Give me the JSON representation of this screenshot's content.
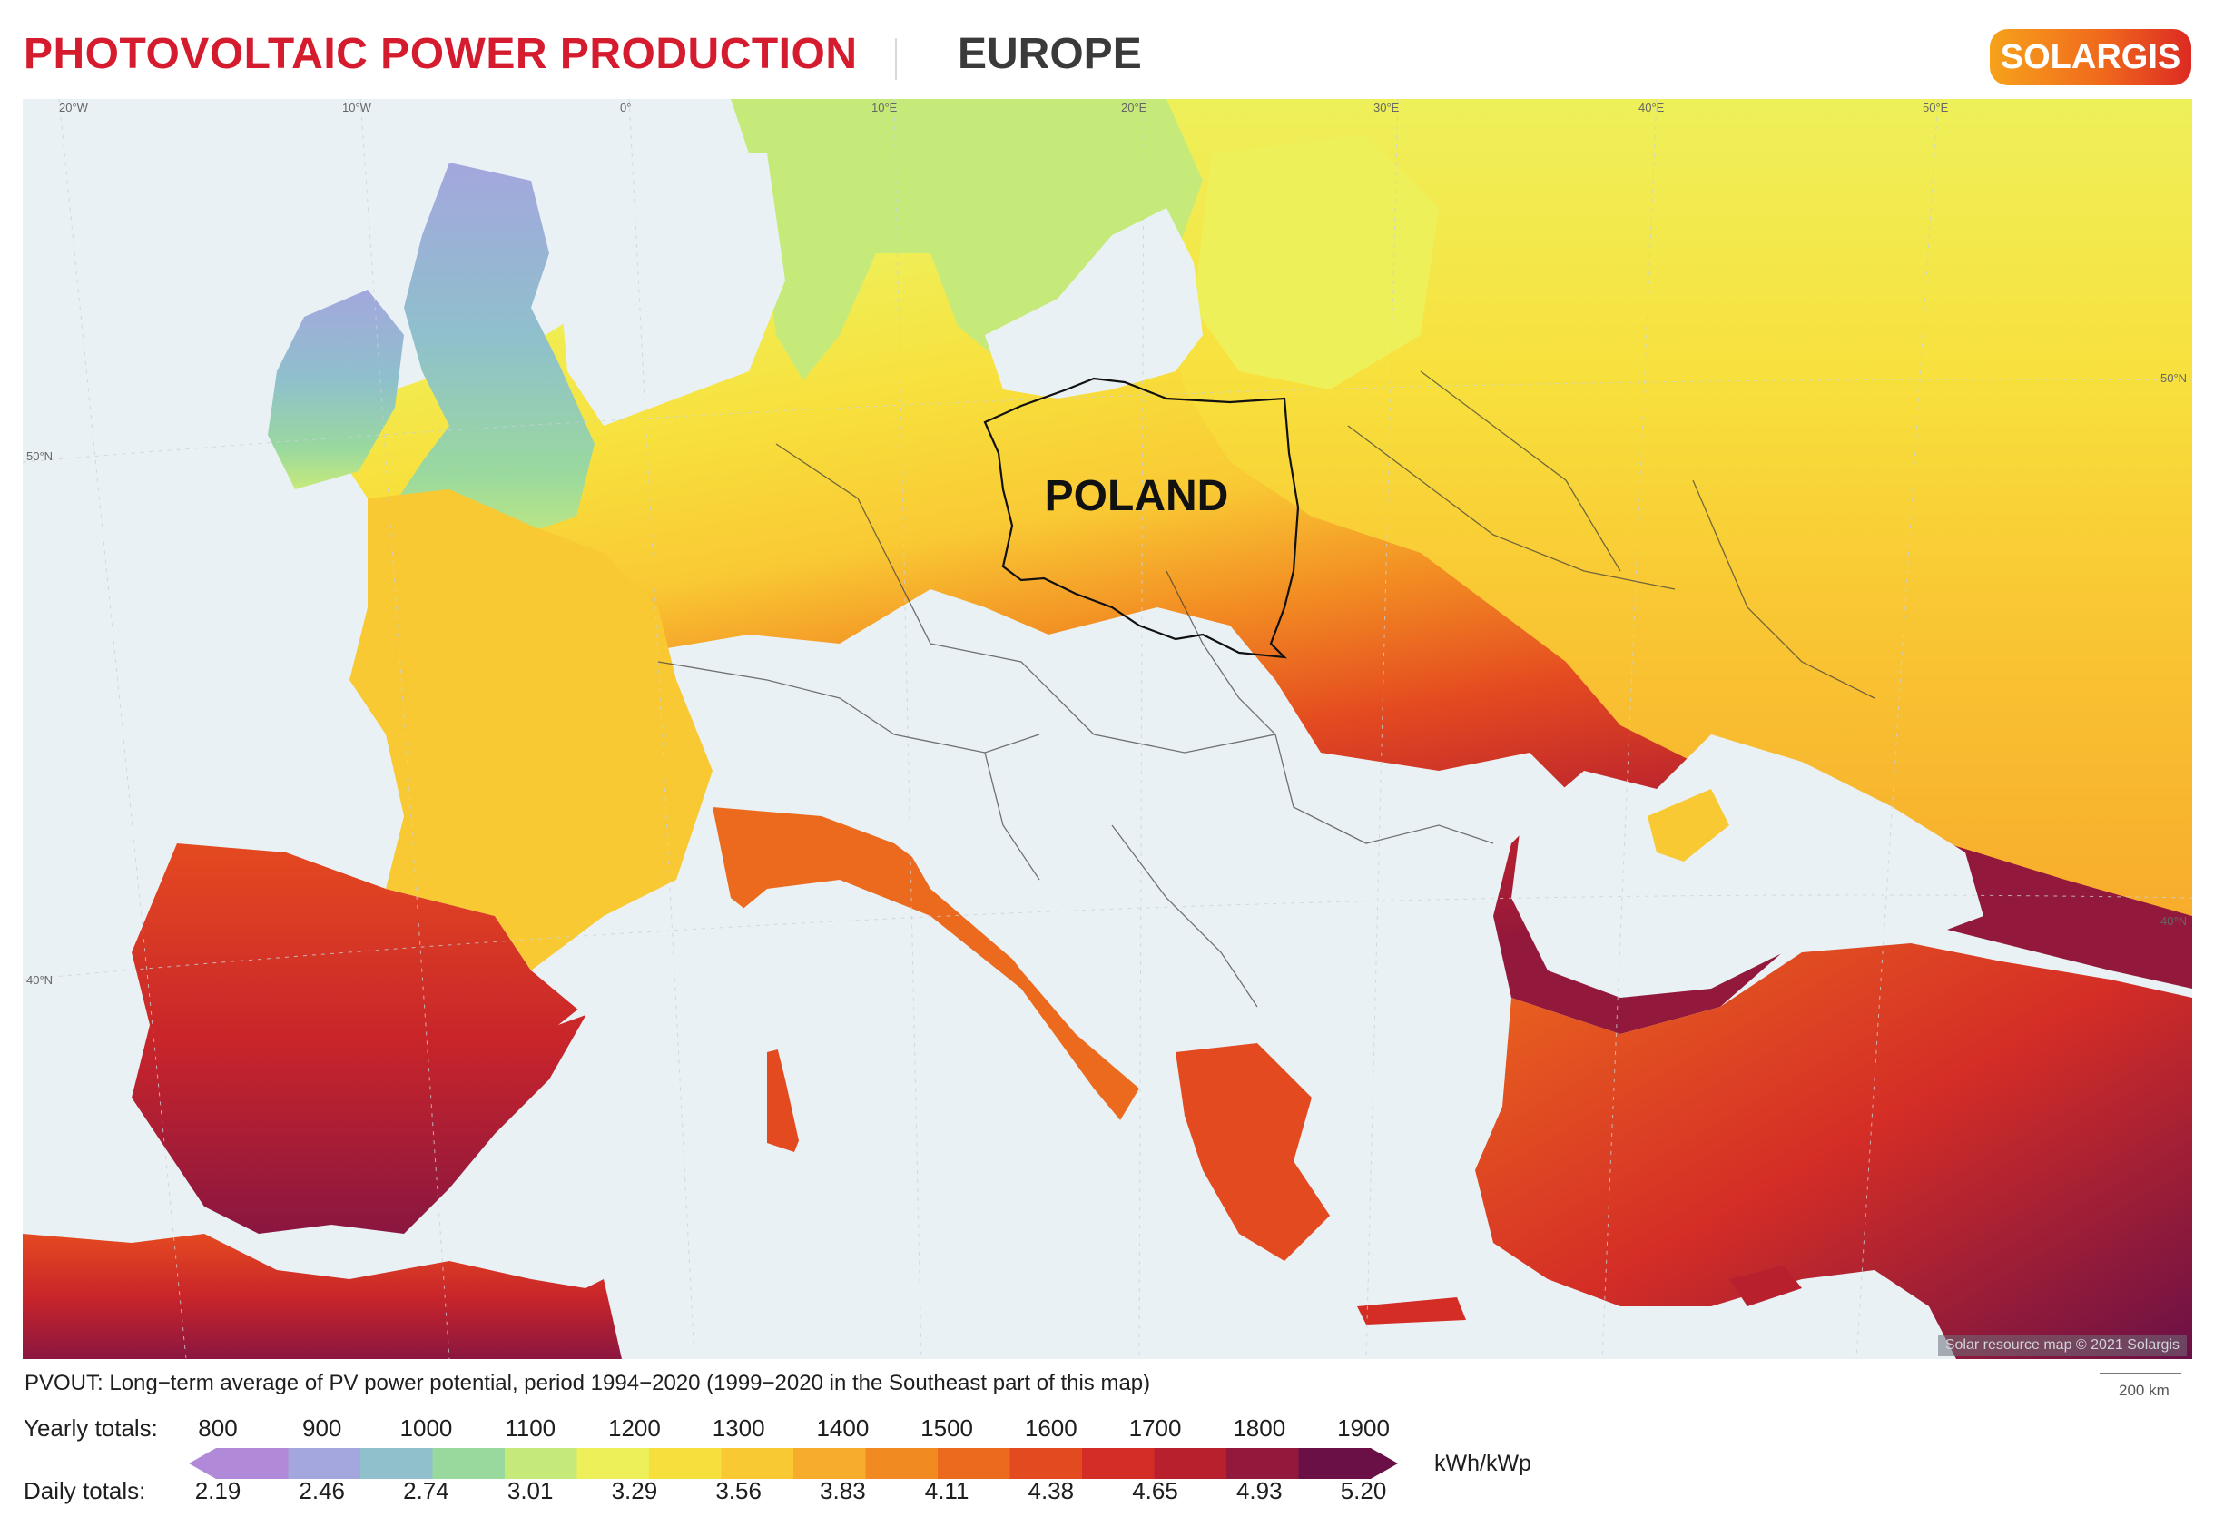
{
  "header": {
    "title": "PHOTOVOLTAIC POWER PRODUCTION",
    "region": "EUROPE",
    "logo": "SOLARGIS"
  },
  "map": {
    "country_label": "POLAND",
    "copyright": "Solar resource map © 2021 Solargis",
    "longitude_labels": [
      "20°W",
      "10°W",
      "0°",
      "10°E",
      "20°E",
      "30°E",
      "40°E",
      "50°E"
    ],
    "latitude_labels": [
      "50°N",
      "40°N"
    ],
    "latitude_labels_right": [
      "50°N",
      "40°N"
    ]
  },
  "caption": "PVOUT: Long−term average of PV power potential, period 1994−2020 (1999−2020 in the Southeast part of this map)",
  "scale": "200 km",
  "legend": {
    "yearly_label": "Yearly totals:",
    "daily_label": "Daily totals:",
    "unit": "kWh/kWp",
    "yearly": [
      "800",
      "900",
      "1000",
      "1100",
      "1200",
      "1300",
      "1400",
      "1500",
      "1600",
      "1700",
      "1800",
      "1900"
    ],
    "daily": [
      "2.19",
      "2.46",
      "2.74",
      "3.01",
      "3.29",
      "3.56",
      "3.83",
      "4.11",
      "4.38",
      "4.65",
      "4.93",
      "5.20"
    ],
    "colors": [
      "#b08ad8",
      "#a3a7dd",
      "#8fc0cc",
      "#9ad99e",
      "#c6ea7a",
      "#eef05a",
      "#f8e03c",
      "#f9c934",
      "#f8ac2c",
      "#f28a22",
      "#ec6a1e",
      "#e44a20",
      "#d42d26",
      "#b8202e",
      "#92183c",
      "#6a1046"
    ]
  }
}
